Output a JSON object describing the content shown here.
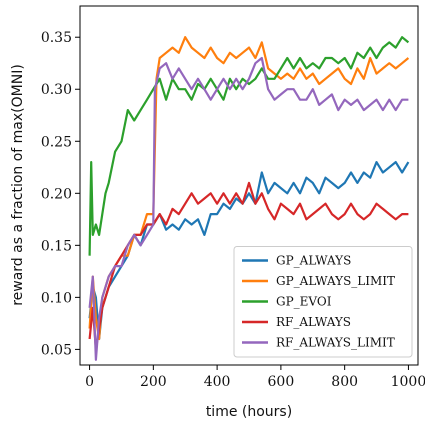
{
  "chart_data": {
    "type": "line",
    "xlabel": "time (hours)",
    "ylabel": "reward as a fraction of max(OMNI)",
    "xlim": [
      -30,
      1030
    ],
    "ylim": [
      0.035,
      0.38
    ],
    "xticks": [
      0,
      200,
      400,
      600,
      800,
      1000
    ],
    "xtick_labels": [
      "0",
      "200",
      "400",
      "600",
      "800",
      "1000"
    ],
    "yticks": [
      0.05,
      0.1,
      0.15,
      0.2,
      0.25,
      0.3,
      0.35
    ],
    "ytick_labels": [
      "0.05",
      "0.10",
      "0.15",
      "0.20",
      "0.25",
      "0.30",
      "0.35"
    ],
    "legend_placement": "lower-right",
    "grid": false,
    "series": [
      {
        "name": "GP_ALWAYS",
        "color": "#1f77b4",
        "x": [
          0,
          10,
          20,
          30,
          40,
          60,
          80,
          100,
          120,
          140,
          160,
          180,
          200,
          220,
          240,
          260,
          280,
          300,
          320,
          340,
          360,
          380,
          400,
          420,
          440,
          460,
          480,
          500,
          520,
          540,
          560,
          580,
          600,
          620,
          640,
          660,
          680,
          700,
          720,
          740,
          760,
          780,
          800,
          820,
          840,
          860,
          880,
          900,
          920,
          940,
          960,
          980,
          1000
        ],
        "y": [
          0.08,
          0.11,
          0.1,
          0.06,
          0.09,
          0.11,
          0.12,
          0.13,
          0.14,
          0.16,
          0.15,
          0.17,
          0.17,
          0.18,
          0.165,
          0.17,
          0.165,
          0.175,
          0.17,
          0.175,
          0.16,
          0.18,
          0.18,
          0.19,
          0.185,
          0.195,
          0.19,
          0.2,
          0.19,
          0.22,
          0.2,
          0.21,
          0.205,
          0.2,
          0.21,
          0.2,
          0.215,
          0.21,
          0.2,
          0.215,
          0.21,
          0.205,
          0.21,
          0.22,
          0.21,
          0.22,
          0.215,
          0.23,
          0.22,
          0.225,
          0.23,
          0.22,
          0.23
        ]
      },
      {
        "name": "GP_ALWAYS_LIMIT",
        "color": "#ff7f0e",
        "x": [
          0,
          10,
          20,
          30,
          40,
          60,
          80,
          100,
          120,
          140,
          160,
          180,
          200,
          210,
          220,
          240,
          260,
          280,
          300,
          320,
          340,
          360,
          380,
          400,
          420,
          440,
          460,
          480,
          500,
          520,
          540,
          560,
          580,
          600,
          620,
          640,
          660,
          680,
          700,
          720,
          740,
          760,
          780,
          800,
          820,
          840,
          860,
          880,
          900,
          920,
          940,
          960,
          980,
          1000
        ],
        "y": [
          0.07,
          0.12,
          0.08,
          0.06,
          0.1,
          0.12,
          0.13,
          0.14,
          0.14,
          0.16,
          0.16,
          0.18,
          0.18,
          0.31,
          0.33,
          0.335,
          0.34,
          0.335,
          0.35,
          0.34,
          0.335,
          0.33,
          0.34,
          0.33,
          0.325,
          0.335,
          0.33,
          0.335,
          0.34,
          0.33,
          0.345,
          0.32,
          0.315,
          0.31,
          0.315,
          0.31,
          0.32,
          0.31,
          0.315,
          0.305,
          0.31,
          0.315,
          0.32,
          0.31,
          0.305,
          0.32,
          0.31,
          0.33,
          0.315,
          0.32,
          0.325,
          0.32,
          0.325,
          0.33
        ]
      },
      {
        "name": "GP_EVOI",
        "color": "#2ca02c",
        "x": [
          0,
          5,
          10,
          20,
          30,
          40,
          50,
          60,
          80,
          100,
          120,
          140,
          160,
          180,
          200,
          220,
          240,
          260,
          280,
          300,
          320,
          340,
          360,
          380,
          400,
          420,
          440,
          460,
          480,
          500,
          520,
          540,
          560,
          580,
          600,
          620,
          640,
          660,
          680,
          700,
          720,
          740,
          760,
          780,
          800,
          820,
          840,
          860,
          880,
          900,
          920,
          940,
          960,
          980,
          1000
        ],
        "y": [
          0.14,
          0.23,
          0.16,
          0.17,
          0.16,
          0.18,
          0.2,
          0.21,
          0.24,
          0.25,
          0.28,
          0.27,
          0.28,
          0.29,
          0.3,
          0.31,
          0.29,
          0.31,
          0.3,
          0.3,
          0.29,
          0.305,
          0.3,
          0.31,
          0.3,
          0.29,
          0.31,
          0.3,
          0.31,
          0.305,
          0.31,
          0.32,
          0.31,
          0.31,
          0.32,
          0.33,
          0.32,
          0.33,
          0.32,
          0.325,
          0.32,
          0.33,
          0.33,
          0.325,
          0.33,
          0.32,
          0.335,
          0.33,
          0.34,
          0.33,
          0.34,
          0.345,
          0.34,
          0.35,
          0.345
        ]
      },
      {
        "name": "RF_ALWAYS",
        "color": "#d62728",
        "x": [
          0,
          10,
          20,
          30,
          40,
          60,
          80,
          100,
          120,
          140,
          160,
          180,
          200,
          220,
          240,
          260,
          280,
          300,
          320,
          340,
          360,
          380,
          400,
          420,
          440,
          460,
          480,
          500,
          520,
          540,
          560,
          580,
          600,
          620,
          640,
          660,
          680,
          700,
          720,
          740,
          760,
          780,
          800,
          820,
          840,
          860,
          880,
          900,
          920,
          940,
          960,
          980,
          1000
        ],
        "y": [
          0.06,
          0.09,
          0.05,
          0.07,
          0.09,
          0.11,
          0.13,
          0.14,
          0.15,
          0.16,
          0.16,
          0.17,
          0.17,
          0.18,
          0.17,
          0.185,
          0.18,
          0.19,
          0.2,
          0.19,
          0.195,
          0.2,
          0.19,
          0.2,
          0.19,
          0.2,
          0.19,
          0.21,
          0.19,
          0.2,
          0.185,
          0.175,
          0.19,
          0.185,
          0.18,
          0.19,
          0.175,
          0.18,
          0.185,
          0.19,
          0.18,
          0.175,
          0.18,
          0.19,
          0.18,
          0.175,
          0.18,
          0.19,
          0.185,
          0.18,
          0.175,
          0.18,
          0.18
        ]
      },
      {
        "name": "RF_ALWAYS_LIMIT",
        "color": "#9467bd",
        "x": [
          0,
          10,
          20,
          30,
          40,
          60,
          80,
          100,
          120,
          140,
          160,
          180,
          200,
          205,
          220,
          240,
          260,
          280,
          300,
          320,
          340,
          360,
          380,
          400,
          420,
          440,
          460,
          480,
          500,
          520,
          540,
          560,
          580,
          600,
          620,
          640,
          660,
          680,
          700,
          720,
          740,
          760,
          780,
          800,
          820,
          840,
          860,
          880,
          900,
          920,
          940,
          960,
          980,
          1000
        ],
        "y": [
          0.09,
          0.12,
          0.04,
          0.08,
          0.1,
          0.12,
          0.13,
          0.13,
          0.15,
          0.16,
          0.15,
          0.16,
          0.17,
          0.3,
          0.32,
          0.325,
          0.31,
          0.32,
          0.31,
          0.3,
          0.31,
          0.3,
          0.29,
          0.3,
          0.31,
          0.3,
          0.31,
          0.3,
          0.31,
          0.325,
          0.33,
          0.3,
          0.29,
          0.295,
          0.3,
          0.3,
          0.29,
          0.29,
          0.3,
          0.285,
          0.29,
          0.295,
          0.28,
          0.29,
          0.285,
          0.29,
          0.28,
          0.285,
          0.29,
          0.28,
          0.29,
          0.28,
          0.29,
          0.29
        ]
      }
    ]
  }
}
